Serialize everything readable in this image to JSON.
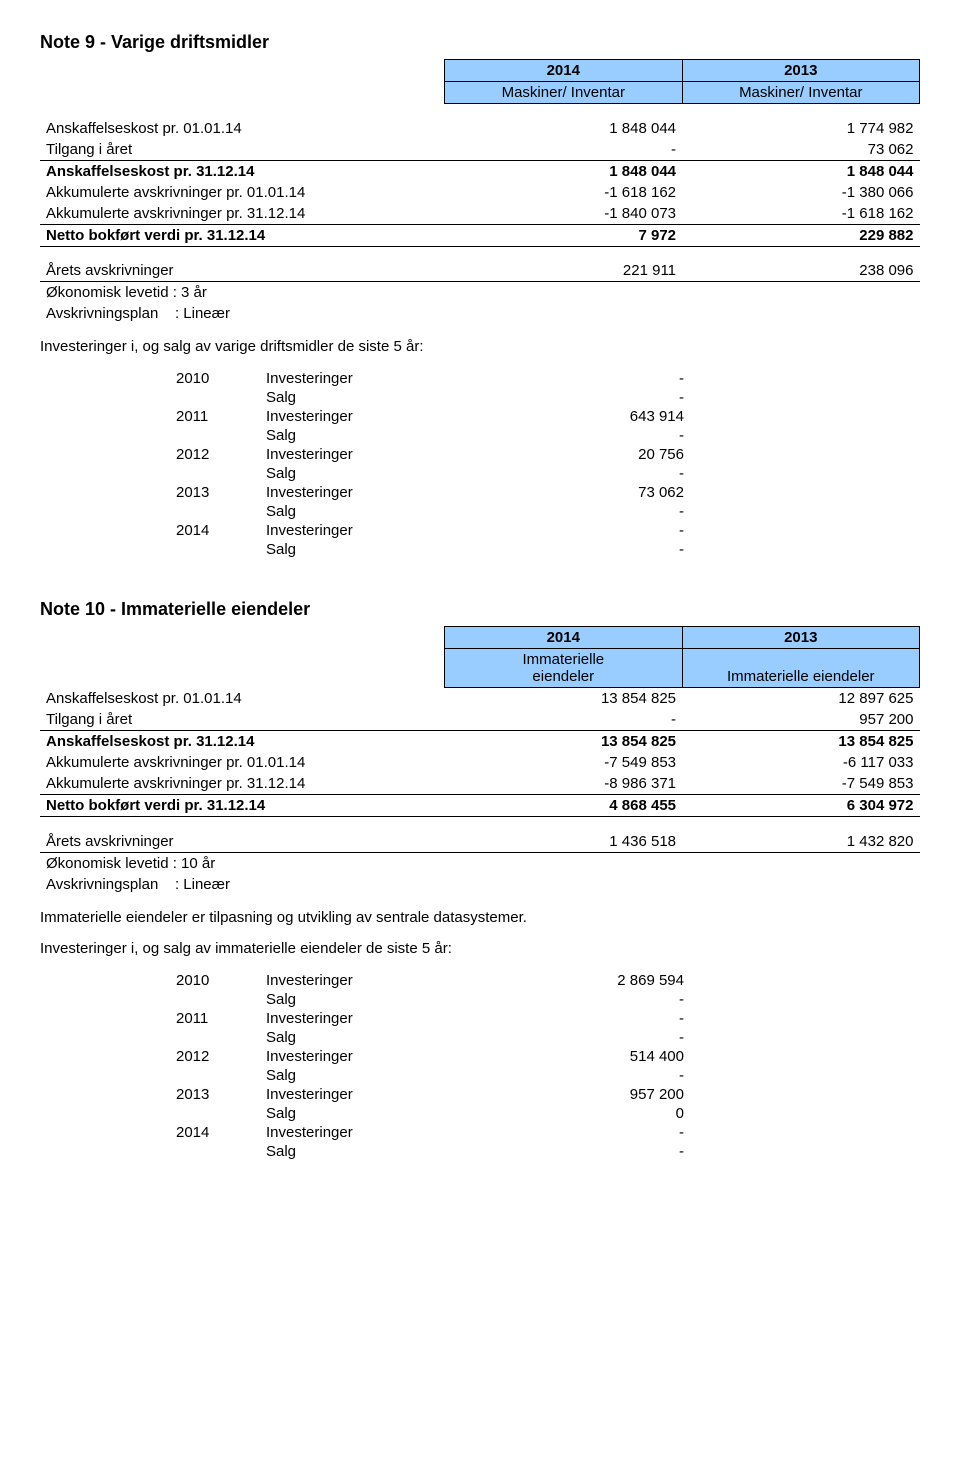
{
  "note9": {
    "title": "Note 9 - Varige driftsmidler",
    "header_year1": "2014",
    "header_year2": "2013",
    "header_col1": "Maskiner/ Inventar",
    "header_col2": "Maskiner/ Inventar",
    "rows": {
      "r1": {
        "label": "Anskaffelseskost pr. 01.01.14",
        "v1": "1 848 044",
        "v2": "1 774 982"
      },
      "r2": {
        "label": "Tilgang i året",
        "v1": "-",
        "v2": "73 062"
      },
      "r3": {
        "label": "Anskaffelseskost pr. 31.12.14",
        "v1": "1 848 044",
        "v2": "1 848 044"
      },
      "r4": {
        "label": "Akkumulerte avskrivninger pr. 01.01.14",
        "v1": "-1 618 162",
        "v2": "-1 380 066"
      },
      "r5": {
        "label": "Akkumulerte avskrivninger pr. 31.12.14",
        "v1": "-1 840 073",
        "v2": "-1 618 162"
      },
      "r6": {
        "label": "Netto bokført verdi pr. 31.12.14",
        "v1": "7 972",
        "v2": "229 882"
      },
      "r7": {
        "label": "Årets avskrivninger",
        "v1": "221 911",
        "v2": "238 096"
      },
      "life": "Økonomisk levetid :  3 år",
      "plan": "Avskrivningsplan    : Lineær"
    },
    "invest_intro": "Investeringer i, og salg av varige driftsmidler de siste 5 år:",
    "invest": [
      {
        "year": "2010",
        "kind": "Investeringer",
        "val": "-"
      },
      {
        "year": "",
        "kind": "Salg",
        "val": "-"
      },
      {
        "year": "2011",
        "kind": "Investeringer",
        "val": "643 914"
      },
      {
        "year": "",
        "kind": "Salg",
        "val": "-"
      },
      {
        "year": "2012",
        "kind": "Investeringer",
        "val": "20 756"
      },
      {
        "year": "",
        "kind": "Salg",
        "val": "-"
      },
      {
        "year": "2013",
        "kind": "Investeringer",
        "val": "73 062"
      },
      {
        "year": "",
        "kind": "Salg",
        "val": "-"
      },
      {
        "year": "2014",
        "kind": "Investeringer",
        "val": "-"
      },
      {
        "year": "",
        "kind": "Salg",
        "val": "-"
      }
    ]
  },
  "note10": {
    "title": "Note 10 - Immaterielle eiendeler",
    "header_year1": "2014",
    "header_year2": "2013",
    "header_col1a": "Immaterielle",
    "header_col1b": "eiendeler",
    "header_col2": "Immaterielle eiendeler",
    "rows": {
      "r1": {
        "label": "Anskaffelseskost pr. 01.01.14",
        "v1": "13 854 825",
        "v2": "12 897 625"
      },
      "r2": {
        "label": "Tilgang i året",
        "v1": "-",
        "v2": "957 200"
      },
      "r3": {
        "label": "Anskaffelseskost pr. 31.12.14",
        "v1": "13 854 825",
        "v2": "13 854 825"
      },
      "r4": {
        "label": "Akkumulerte avskrivninger pr. 01.01.14",
        "v1": "-7 549 853",
        "v2": "-6 117 033"
      },
      "r5": {
        "label": "Akkumulerte avskrivninger pr. 31.12.14",
        "v1": "-8 986 371",
        "v2": "-7 549 853"
      },
      "r6": {
        "label": "Netto bokført verdi pr. 31.12.14",
        "v1": "4 868 455",
        "v2": "6 304 972"
      },
      "r7": {
        "label": "Årets avskrivninger",
        "v1": "1 436 518",
        "v2": "1 432 820"
      },
      "life": "Økonomisk levetid :  10 år",
      "plan": "Avskrivningsplan    : Lineær"
    },
    "desc": "Immaterielle eiendeler er tilpasning og utvikling av sentrale datasystemer.",
    "invest_intro": "Investeringer i, og salg av immaterielle eiendeler de siste 5 år:",
    "invest": [
      {
        "year": "2010",
        "kind": "Investeringer",
        "val": "2 869 594"
      },
      {
        "year": "",
        "kind": "Salg",
        "val": "-"
      },
      {
        "year": "2011",
        "kind": "Investeringer",
        "val": "-"
      },
      {
        "year": "",
        "kind": "Salg",
        "val": "-"
      },
      {
        "year": "2012",
        "kind": "Investeringer",
        "val": "514 400"
      },
      {
        "year": "",
        "kind": "Salg",
        "val": "-"
      },
      {
        "year": "2013",
        "kind": "Investeringer",
        "val": "957 200"
      },
      {
        "year": "",
        "kind": "Salg",
        "val": "0"
      },
      {
        "year": "2014",
        "kind": "Investeringer",
        "val": "-"
      },
      {
        "year": "",
        "kind": "Salg",
        "val": "-"
      }
    ]
  },
  "style": {
    "header_bg": "#99ccff",
    "border_color": "#000000",
    "font_family": "Arial",
    "body_fontsize": 15,
    "title_fontsize": 18
  }
}
